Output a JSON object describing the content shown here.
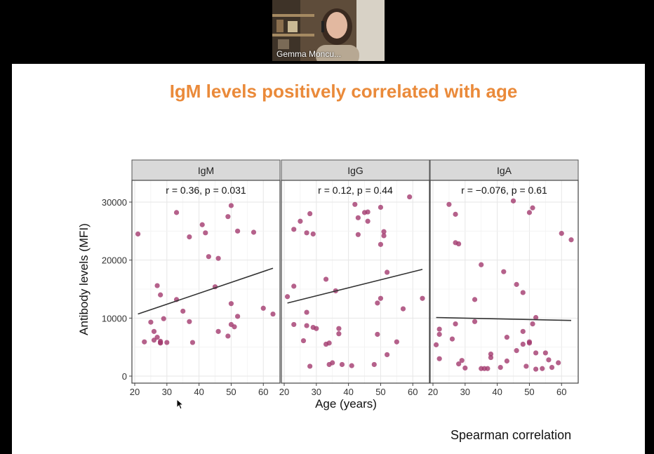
{
  "participant": {
    "name": "Gemma Moncu..."
  },
  "slide": {
    "title": "IgM levels positively correlated with age",
    "footnote": "Spearman correlation"
  },
  "colors": {
    "title": "#ea8a3a",
    "point": "#a33a6e",
    "strip_bg": "#d9d9d9",
    "panel_bg": "#ebebeb"
  },
  "icons": {
    "cursor": "mouse-pointer-icon"
  },
  "chart_data": {
    "type": "scatter",
    "xlabel": "Age (years)",
    "ylabel": "Antibody levels (MFI)",
    "xlim": [
      20,
      63
    ],
    "ylim": [
      0,
      31000
    ],
    "x_ticks": [
      20,
      30,
      40,
      50,
      60
    ],
    "y_ticks": [
      0,
      10000,
      20000,
      30000
    ],
    "y_tick_labels": [
      "0",
      "10000",
      "20000",
      "30000"
    ],
    "grid": true,
    "panels": [
      {
        "strip": "IgM",
        "annotation": "r = 0.36, p = 0.031",
        "trend": [
          [
            21,
            10700
          ],
          [
            63,
            18600
          ]
        ],
        "points": [
          [
            21,
            24500
          ],
          [
            23,
            5900
          ],
          [
            25,
            9300
          ],
          [
            26,
            7700
          ],
          [
            26,
            6200
          ],
          [
            27,
            15600
          ],
          [
            27,
            6700
          ],
          [
            28,
            6000
          ],
          [
            28,
            5800
          ],
          [
            28,
            5700
          ],
          [
            28,
            14000
          ],
          [
            29,
            9900
          ],
          [
            30,
            5800
          ],
          [
            33,
            13200
          ],
          [
            33,
            28200
          ],
          [
            35,
            11200
          ],
          [
            37,
            9400
          ],
          [
            37,
            24000
          ],
          [
            38,
            5800
          ],
          [
            41,
            26100
          ],
          [
            42,
            24700
          ],
          [
            43,
            20600
          ],
          [
            45,
            15400
          ],
          [
            46,
            20300
          ],
          [
            46,
            7700
          ],
          [
            49,
            6900
          ],
          [
            49,
            27500
          ],
          [
            50,
            29400
          ],
          [
            50,
            12500
          ],
          [
            50,
            8900
          ],
          [
            51,
            8500
          ],
          [
            52,
            25000
          ],
          [
            52,
            10300
          ],
          [
            57,
            24800
          ],
          [
            60,
            11700
          ],
          [
            63,
            10700
          ]
        ]
      },
      {
        "strip": "IgG",
        "annotation": "r = 0.12, p = 0.44",
        "trend": [
          [
            21,
            12600
          ],
          [
            63,
            18400
          ]
        ],
        "points": [
          [
            21,
            13700
          ],
          [
            23,
            15500
          ],
          [
            23,
            25300
          ],
          [
            23,
            8900
          ],
          [
            25,
            26700
          ],
          [
            26,
            6100
          ],
          [
            27,
            11000
          ],
          [
            27,
            24700
          ],
          [
            27,
            8700
          ],
          [
            28,
            28000
          ],
          [
            28,
            1700
          ],
          [
            29,
            24500
          ],
          [
            29,
            8400
          ],
          [
            30,
            8200
          ],
          [
            33,
            16700
          ],
          [
            33,
            5500
          ],
          [
            34,
            5700
          ],
          [
            34,
            2000
          ],
          [
            35,
            2300
          ],
          [
            36,
            14700
          ],
          [
            37,
            7300
          ],
          [
            37,
            8200
          ],
          [
            38,
            2000
          ],
          [
            41,
            1800
          ],
          [
            42,
            29600
          ],
          [
            43,
            24400
          ],
          [
            43,
            27300
          ],
          [
            45,
            28200
          ],
          [
            46,
            28300
          ],
          [
            46,
            26700
          ],
          [
            48,
            2000
          ],
          [
            49,
            7200
          ],
          [
            49,
            12600
          ],
          [
            50,
            22700
          ],
          [
            50,
            13400
          ],
          [
            50,
            29100
          ],
          [
            51,
            24900
          ],
          [
            51,
            24200
          ],
          [
            52,
            3700
          ],
          [
            52,
            17900
          ],
          [
            55,
            5900
          ],
          [
            57,
            11600
          ],
          [
            59,
            30900
          ],
          [
            63,
            13400
          ]
        ]
      },
      {
        "strip": "IgA",
        "annotation": "r = −0.076, p = 0.61",
        "trend": [
          [
            21,
            10100
          ],
          [
            63,
            9600
          ]
        ],
        "points": [
          [
            21,
            5400
          ],
          [
            22,
            3000
          ],
          [
            22,
            7200
          ],
          [
            22,
            8100
          ],
          [
            25,
            29600
          ],
          [
            26,
            6400
          ],
          [
            27,
            27900
          ],
          [
            27,
            9000
          ],
          [
            27,
            23000
          ],
          [
            28,
            22800
          ],
          [
            28,
            2100
          ],
          [
            29,
            2700
          ],
          [
            30,
            1400
          ],
          [
            33,
            13200
          ],
          [
            33,
            9400
          ],
          [
            35,
            19200
          ],
          [
            35,
            1300
          ],
          [
            36,
            1300
          ],
          [
            37,
            1300
          ],
          [
            38,
            3800
          ],
          [
            38,
            3200
          ],
          [
            41,
            1500
          ],
          [
            42,
            18000
          ],
          [
            43,
            6700
          ],
          [
            43,
            2600
          ],
          [
            45,
            30200
          ],
          [
            46,
            15800
          ],
          [
            46,
            4400
          ],
          [
            48,
            5500
          ],
          [
            48,
            14400
          ],
          [
            48,
            7700
          ],
          [
            49,
            1700
          ],
          [
            50,
            28200
          ],
          [
            50,
            5700
          ],
          [
            50,
            5900
          ],
          [
            51,
            9000
          ],
          [
            51,
            29000
          ],
          [
            52,
            10100
          ],
          [
            52,
            4000
          ],
          [
            52,
            1200
          ],
          [
            54,
            1300
          ],
          [
            55,
            4000
          ],
          [
            56,
            2800
          ],
          [
            57,
            1500
          ],
          [
            59,
            2300
          ],
          [
            60,
            24600
          ],
          [
            63,
            23500
          ]
        ]
      }
    ]
  }
}
